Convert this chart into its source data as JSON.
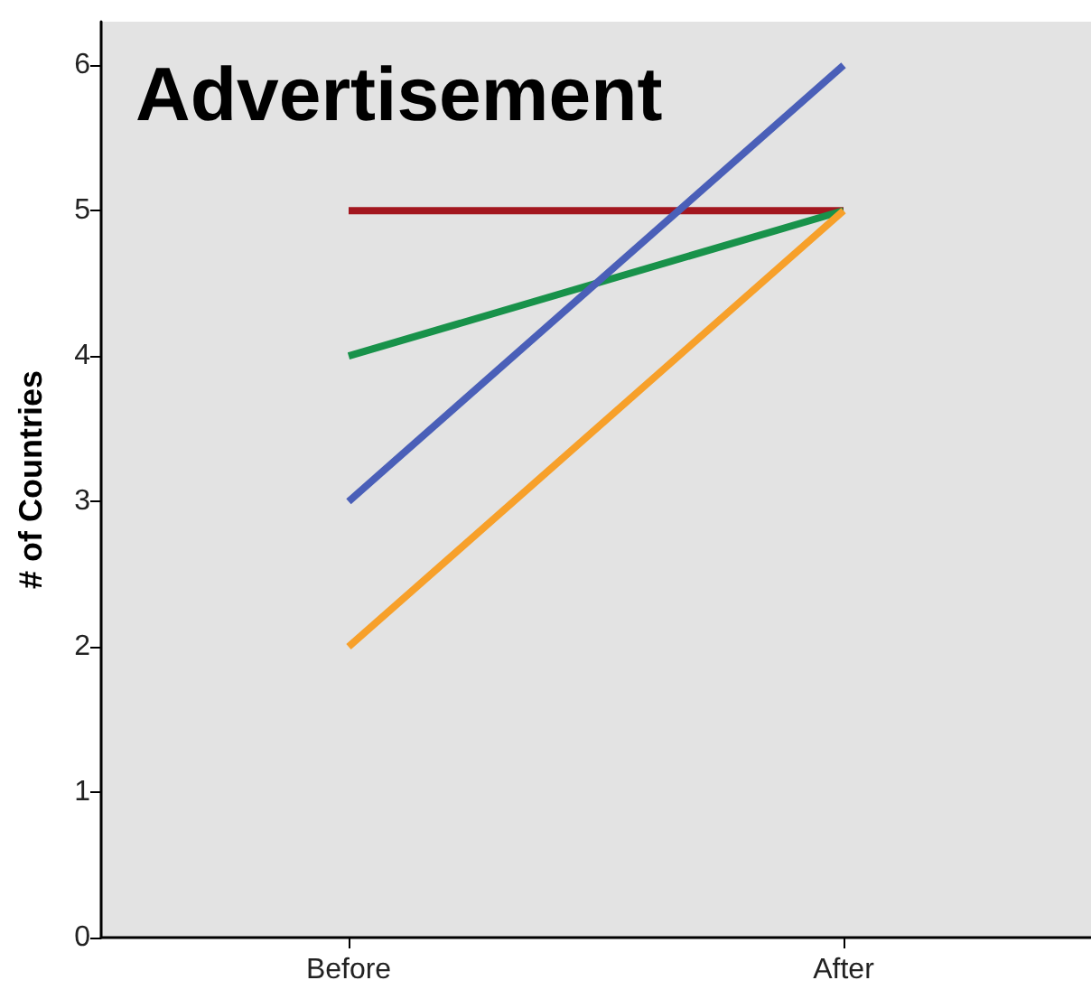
{
  "chart_data": {
    "type": "line",
    "title": "Advertisement",
    "ylabel": "# of Countries",
    "categories": [
      "Before",
      "After"
    ],
    "series": [
      {
        "color": "#a3171f",
        "values": [
          5,
          5
        ]
      },
      {
        "color": "#18924a",
        "values": [
          4,
          5
        ]
      },
      {
        "color": "#4a5fb8",
        "values": [
          3,
          6
        ]
      },
      {
        "color": "#f7a02a",
        "values": [
          2,
          5
        ]
      }
    ],
    "ylim": [
      0,
      6.3
    ],
    "yticks": [
      0,
      1,
      2,
      3,
      4,
      5,
      6
    ],
    "grid": false,
    "marker": "none",
    "line_style": "solid"
  }
}
